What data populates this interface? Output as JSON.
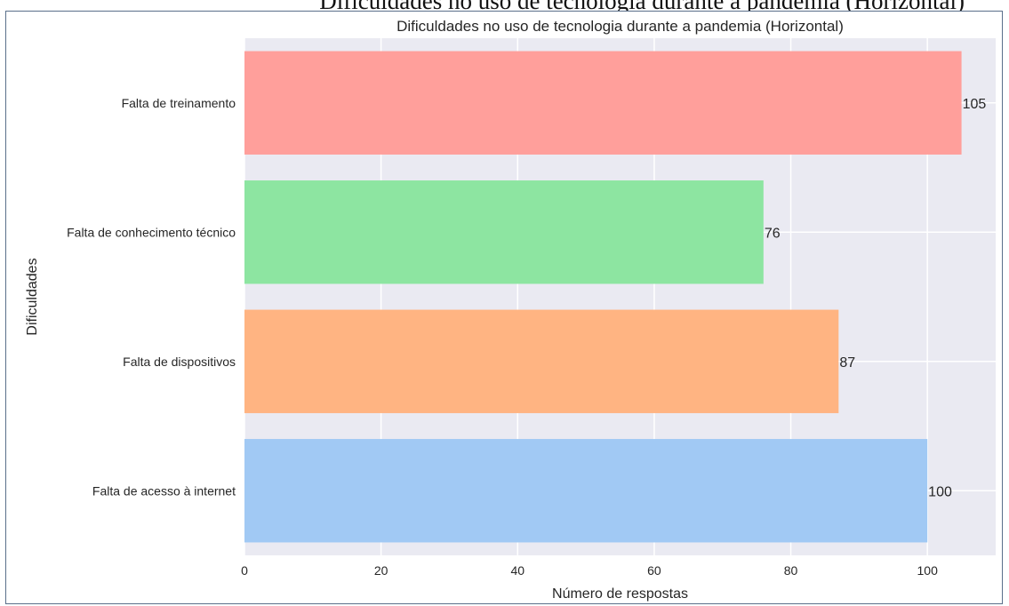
{
  "background_text": "Dificuldades no uso de tecnologia durante a pandemia (Horizontal)",
  "chart_data": {
    "type": "bar",
    "orientation": "horizontal",
    "title": "Dificuldades no uso de tecnologia durante a pandemia (Horizontal)",
    "xlabel": "Número de respostas",
    "ylabel": "Dificuldades",
    "categories": [
      "Falta de acesso à internet",
      "Falta de dispositivos",
      "Falta de conhecimento técnico",
      "Falta de treinamento"
    ],
    "values": [
      100,
      87,
      76,
      105
    ],
    "value_labels": [
      "100",
      "87",
      "76",
      "105"
    ],
    "colors": [
      "#a1c9f4",
      "#ffb482",
      "#8de5a1",
      "#ff9f9b"
    ],
    "xlim": [
      0,
      110
    ],
    "xticks": [
      0,
      20,
      40,
      60,
      80,
      100
    ],
    "xtick_labels": [
      "0",
      "20",
      "40",
      "60",
      "80",
      "100"
    ],
    "grid": true,
    "plot_background": "#eaeaf2",
    "grid_color": "#ffffff"
  }
}
